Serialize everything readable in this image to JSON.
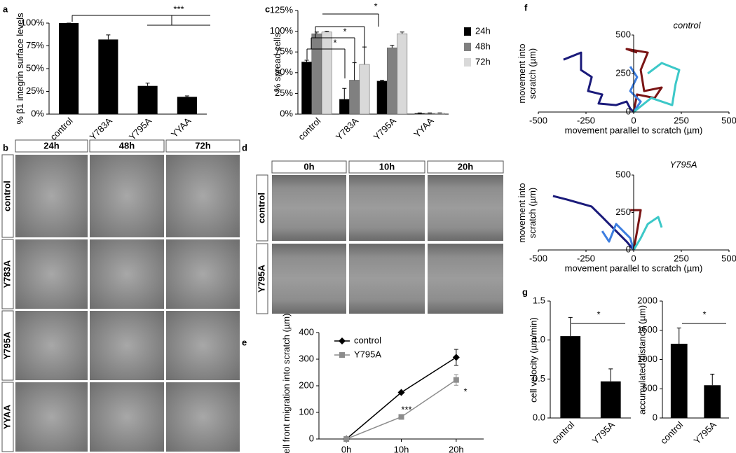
{
  "panel_letters": [
    "a",
    "b",
    "c",
    "d",
    "e",
    "f",
    "g"
  ],
  "figure_b": {
    "columns": [
      "24h",
      "48h",
      "72h"
    ],
    "rows": [
      "control",
      "Y783A",
      "Y795A",
      "YYAA"
    ]
  },
  "figure_d": {
    "columns": [
      "0h",
      "10h",
      "20h"
    ],
    "rows": [
      "control",
      "Y795A"
    ]
  },
  "chart_data": [
    {
      "type": "bar",
      "ylabel": "% β1 integrin surface levels",
      "categories": [
        "control",
        "Y783A",
        "Y795A",
        "YYAA"
      ],
      "values": [
        100,
        82,
        31,
        19
      ],
      "errors": [
        0,
        5,
        3,
        1
      ],
      "color": "#000000",
      "ylim": [
        0,
        100
      ],
      "yticks": [
        {
          "value": 0,
          "label": "0%"
        },
        {
          "value": 25,
          "label": "25%"
        },
        {
          "value": 50,
          "label": "50%"
        },
        {
          "value": 75,
          "label": "75%"
        },
        {
          "value": 100,
          "label": "100%"
        }
      ],
      "annotations": [
        {
          "text": "***"
        }
      ]
    },
    {
      "type": "bar",
      "ylabel": "% spread cells",
      "categories": [
        "control",
        "Y783A",
        "Y795A",
        "YYAA"
      ],
      "series": [
        {
          "name": "24h",
          "color": "#000000",
          "values": [
            63,
            18,
            40,
            1
          ],
          "errors": [
            2,
            13,
            1,
            0.5
          ]
        },
        {
          "name": "48h",
          "color": "#808080",
          "values": [
            97,
            41,
            80,
            1
          ],
          "errors": [
            2,
            21,
            3,
            0.5
          ]
        },
        {
          "name": "72h",
          "color": "#d9d9d9",
          "values": [
            99,
            60,
            97,
            1
          ],
          "errors": [
            1,
            21,
            2,
            0.5
          ]
        }
      ],
      "legend": "right",
      "ylim": [
        0,
        125
      ],
      "yticks": [
        {
          "value": 0,
          "label": "0%"
        },
        {
          "value": 25,
          "label": "25%"
        },
        {
          "value": 50,
          "label": "50%"
        },
        {
          "value": 75,
          "label": "75%"
        },
        {
          "value": 100,
          "label": "100%"
        },
        {
          "value": 125,
          "label": "125%"
        }
      ],
      "annotations": [
        {
          "text": "*"
        },
        {
          "text": "*"
        },
        {
          "text": "*"
        }
      ]
    },
    {
      "type": "line",
      "ylabel": "cell front migration into scratch (µm)",
      "categories": [
        "0h",
        "10h",
        "20h"
      ],
      "series": [
        {
          "name": "control",
          "color": "#000000",
          "marker": "diamond",
          "values": [
            0,
            175,
            307
          ],
          "errors": [
            0,
            5,
            30
          ]
        },
        {
          "name": "Y795A",
          "color": "#8c8c8c",
          "marker": "square",
          "values": [
            0,
            83,
            222
          ],
          "errors": [
            0,
            8,
            20
          ]
        }
      ],
      "legend": "upper left",
      "ylim": [
        0,
        400
      ],
      "yticks": [
        0,
        100,
        200,
        300,
        400
      ],
      "annotations": [
        {
          "text": "***"
        },
        {
          "text": "*"
        }
      ]
    },
    {
      "type": "line",
      "title": "control",
      "xlabel": "movement parallel to scratch (µm)",
      "ylabel": "movement into scratch (µm)",
      "xlim": [
        -500,
        500
      ],
      "xticks": [
        -500,
        -250,
        0,
        250,
        500
      ],
      "ylim": [
        0,
        500
      ],
      "yticks": [
        0,
        250,
        500
      ],
      "series": [
        {
          "color": "#1a1a7a",
          "x": [
            0,
            -18,
            -37,
            -92,
            -184,
            -165,
            -239,
            -220,
            -276,
            -276,
            -368
          ],
          "values": [
            0,
            23,
            68,
            45,
            55,
            114,
            136,
            227,
            273,
            386,
            340
          ]
        },
        {
          "color": "#7a1414",
          "x": [
            0,
            18,
            110,
            147,
            55,
            37,
            74,
            -37,
            18
          ],
          "values": [
            0,
            114,
            91,
            159,
            136,
            273,
            386,
            409,
            386
          ]
        },
        {
          "color": "#3d7ee0",
          "x": [
            0,
            37,
            -18,
            18,
            -18
          ],
          "values": [
            0,
            68,
            136,
            227,
            295
          ]
        },
        {
          "color": "#3cc8c8",
          "x": [
            0,
            92,
            202,
            220,
            239,
            147,
            74
          ],
          "values": [
            0,
            91,
            45,
            182,
            273,
            318,
            250
          ]
        }
      ]
    },
    {
      "type": "line",
      "title": "Y795A",
      "xlabel": "movement parallel to scratch (µm)",
      "ylabel": "movement into scratch (µm)",
      "xlim": [
        -500,
        500
      ],
      "xticks": [
        -500,
        -250,
        0,
        250,
        500
      ],
      "ylim": [
        0,
        500
      ],
      "yticks": [
        0,
        250,
        500
      ],
      "series": [
        {
          "color": "#1a1a7a",
          "x": [
            0,
            -37,
            -92,
            -165,
            -221,
            -349,
            -423
          ],
          "values": [
            0,
            56,
            126,
            220,
            290,
            336,
            360
          ]
        },
        {
          "color": "#3d7ee0",
          "x": [
            0,
            -18,
            -92,
            -129,
            -165
          ],
          "values": [
            0,
            79,
            173,
            56,
            126
          ]
        },
        {
          "color": "#7a1414",
          "x": [
            0,
            18,
            37,
            -18
          ],
          "values": [
            0,
            126,
            266,
            266
          ]
        },
        {
          "color": "#3cc8c8",
          "x": [
            0,
            37,
            74,
            129,
            147
          ],
          "values": [
            0,
            79,
            173,
            220,
            150
          ]
        }
      ]
    },
    {
      "type": "bar",
      "ylabel": "cell velocity (µm/min)",
      "categories": [
        "control",
        "Y795A"
      ],
      "values": [
        1.05,
        0.47
      ],
      "errors": [
        0.24,
        0.16
      ],
      "color": "#000000",
      "ylim": [
        0,
        1.5
      ],
      "yticks": [
        {
          "value": 0,
          "label": "0.0"
        },
        0.5,
        {
          "value": 1,
          "label": "1.0"
        },
        1.5
      ],
      "annotations": [
        {
          "text": "*"
        }
      ]
    },
    {
      "type": "bar",
      "ylabel": "accumulated distance (µm)",
      "categories": [
        "control",
        "Y795A"
      ],
      "values": [
        1270,
        560
      ],
      "errors": [
        270,
        190
      ],
      "color": "#000000",
      "ylim": [
        0,
        2000
      ],
      "yticks": [
        0,
        500,
        1000,
        1500,
        2000
      ],
      "annotations": [
        {
          "text": "*"
        }
      ]
    }
  ]
}
